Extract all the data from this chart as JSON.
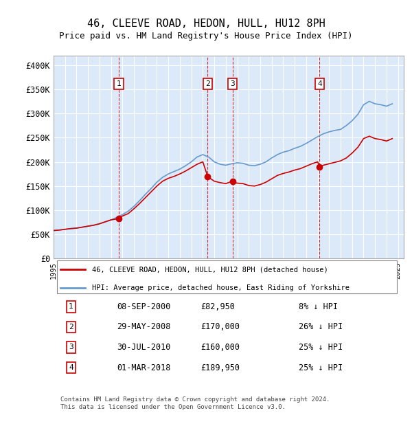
{
  "title": "46, CLEEVE ROAD, HEDON, HULL, HU12 8PH",
  "subtitle": "Price paid vs. HM Land Registry's House Price Index (HPI)",
  "ylabel": "",
  "ylim": [
    0,
    420000
  ],
  "yticks": [
    0,
    50000,
    100000,
    150000,
    200000,
    250000,
    300000,
    350000,
    400000
  ],
  "ytick_labels": [
    "£0",
    "£50K",
    "£100K",
    "£150K",
    "£200K",
    "£250K",
    "£300K",
    "£350K",
    "£400K"
  ],
  "background_color": "#dce9f8",
  "plot_bg_color": "#dce9f8",
  "legend_label_red": "46, CLEEVE ROAD, HEDON, HULL, HU12 8PH (detached house)",
  "legend_label_blue": "HPI: Average price, detached house, East Riding of Yorkshire",
  "footer": "Contains HM Land Registry data © Crown copyright and database right 2024.\nThis data is licensed under the Open Government Licence v3.0.",
  "sales": [
    {
      "num": 1,
      "year": 2000.69,
      "price": 82950,
      "label": "08-SEP-2000",
      "pct": "8% ↓ HPI"
    },
    {
      "num": 2,
      "year": 2008.42,
      "price": 170000,
      "label": "29-MAY-2008",
      "pct": "26% ↓ HPI"
    },
    {
      "num": 3,
      "year": 2010.58,
      "price": 160000,
      "label": "30-JUL-2010",
      "pct": "25% ↓ HPI"
    },
    {
      "num": 4,
      "year": 2018.17,
      "price": 189950,
      "label": "01-MAR-2018",
      "pct": "25% ↓ HPI"
    }
  ],
  "hpi_years": [
    1995,
    1995.5,
    1996,
    1996.5,
    1997,
    1997.5,
    1998,
    1998.5,
    1999,
    1999.5,
    2000,
    2000.5,
    2001,
    2001.5,
    2002,
    2002.5,
    2003,
    2003.5,
    2004,
    2004.5,
    2005,
    2005.5,
    2006,
    2006.5,
    2007,
    2007.5,
    2008,
    2008.5,
    2009,
    2009.5,
    2010,
    2010.5,
    2011,
    2011.5,
    2012,
    2012.5,
    2013,
    2013.5,
    2014,
    2014.5,
    2015,
    2015.5,
    2016,
    2016.5,
    2017,
    2017.5,
    2018,
    2018.5,
    2019,
    2019.5,
    2020,
    2020.5,
    2021,
    2021.5,
    2022,
    2022.5,
    2023,
    2023.5,
    2024,
    2024.5
  ],
  "hpi_values": [
    58000,
    59000,
    60500,
    62000,
    63000,
    65000,
    67000,
    69000,
    72000,
    76000,
    80000,
    85000,
    91000,
    98000,
    108000,
    120000,
    133000,
    145000,
    158000,
    168000,
    175000,
    180000,
    185000,
    192000,
    200000,
    210000,
    215000,
    210000,
    200000,
    195000,
    193000,
    196000,
    198000,
    197000,
    193000,
    192000,
    195000,
    200000,
    208000,
    215000,
    220000,
    223000,
    228000,
    232000,
    238000,
    245000,
    252000,
    258000,
    262000,
    265000,
    267000,
    275000,
    285000,
    298000,
    318000,
    325000,
    320000,
    318000,
    315000,
    320000
  ],
  "red_years": [
    1995,
    1995.5,
    1996,
    1996.5,
    1997,
    1997.5,
    1998,
    1998.5,
    1999,
    1999.5,
    2000,
    2000.5,
    2000.69,
    2001,
    2001.5,
    2002,
    2002.5,
    2003,
    2003.5,
    2004,
    2004.5,
    2005,
    2005.5,
    2006,
    2006.5,
    2007,
    2007.5,
    2008,
    2008.42,
    2008.5,
    2009,
    2009.5,
    2010,
    2010.58,
    2010.5,
    2011,
    2011.5,
    2012,
    2012.5,
    2013,
    2013.5,
    2014,
    2014.5,
    2015,
    2015.5,
    2016,
    2016.5,
    2017,
    2017.5,
    2018,
    2018.17,
    2018.5,
    2019,
    2019.5,
    2020,
    2020.5,
    2021,
    2021.5,
    2022,
    2022.5,
    2023,
    2023.5,
    2024,
    2024.5
  ],
  "red_values": [
    58000,
    59000,
    60500,
    62000,
    63000,
    65000,
    67000,
    69000,
    72000,
    76000,
    80000,
    82000,
    82950,
    88000,
    93000,
    103000,
    114000,
    126000,
    138000,
    150000,
    160000,
    166000,
    170000,
    175000,
    181000,
    188000,
    195000,
    200000,
    170000,
    168000,
    160000,
    157000,
    155000,
    160000,
    158000,
    156000,
    155000,
    151000,
    150000,
    153000,
    158000,
    165000,
    172000,
    176000,
    179000,
    183000,
    186000,
    191000,
    196000,
    200000,
    189950,
    193000,
    196000,
    199000,
    202000,
    208000,
    218000,
    230000,
    248000,
    253000,
    248000,
    246000,
    243000,
    248000
  ],
  "sale_color": "#cc0000",
  "hpi_color": "#6699cc",
  "dashed_color": "#cc0000"
}
